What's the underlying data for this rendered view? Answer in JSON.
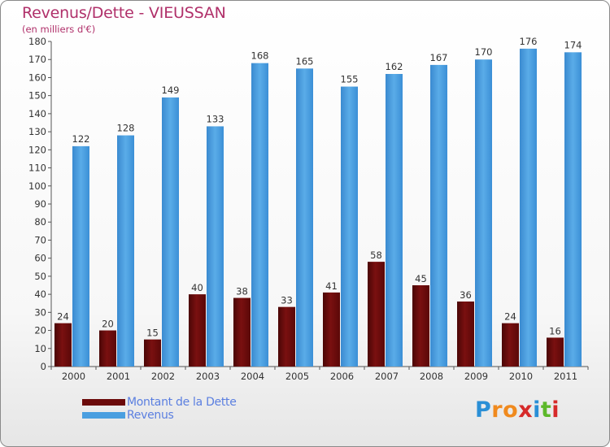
{
  "header": {
    "title": "Revenus/Dette - VIEUSSAN",
    "subtitle": "(en milliers d'€)"
  },
  "colors": {
    "debt": "#6b0a0a",
    "revenue": "#4a9fe0",
    "title": "#b0306a",
    "legend_text": "#5b7fe0"
  },
  "legend": [
    {
      "label": "Montant de la Dette",
      "color": "#6b0a0a"
    },
    {
      "label": "Revenus",
      "color": "#4a9fe0"
    }
  ],
  "logo": {
    "text": "Proxiti",
    "letter_colors": [
      "#2a8fd6",
      "#f08a1e",
      "#f08a1e",
      "#d62a2a",
      "#2a8fd6",
      "#5db82a",
      "#d62a2a"
    ]
  },
  "chart_data": {
    "type": "bar",
    "categories": [
      "2000",
      "2001",
      "2002",
      "2003",
      "2004",
      "2005",
      "2006",
      "2007",
      "2008",
      "2009",
      "2010",
      "2011"
    ],
    "series": [
      {
        "name": "Montant de la Dette",
        "values": [
          24,
          20,
          15,
          40,
          38,
          33,
          41,
          58,
          45,
          36,
          24,
          16
        ]
      },
      {
        "name": "Revenus",
        "values": [
          122,
          128,
          149,
          133,
          168,
          165,
          155,
          162,
          167,
          170,
          176,
          174
        ]
      }
    ],
    "ylim": [
      0,
      180
    ],
    "ytick_step": 10,
    "grid": false
  }
}
